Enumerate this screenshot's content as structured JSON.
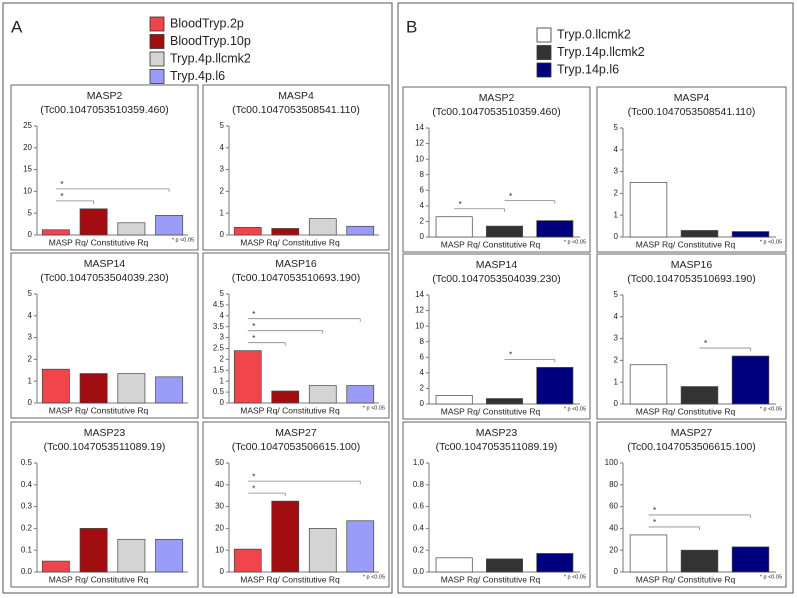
{
  "chart_data": [
    {
      "type": "bar",
      "label": "A",
      "series": [
        {
          "name": "BloodTryp.2p",
          "color": "#f2444b"
        },
        {
          "name": "BloodTryp.10p",
          "color": "#a20d12"
        },
        {
          "name": "Tryp.4p.llcmk2",
          "color": "#d4d4d4"
        },
        {
          "name": "Tryp.4p.l6",
          "color": "#9a9cf8"
        }
      ],
      "charts": [
        {
          "title": "MASP2",
          "subtitle": "(Tc00.1047053510359.460)",
          "xlabel": "MASP Rq/ Constitutive Rq",
          "note": "* p <0.05",
          "values": [
            1.2,
            6,
            2.8,
            4.5
          ],
          "ylim": [
            0,
            25
          ],
          "yticks": [
            0,
            5,
            10,
            15,
            20,
            25
          ],
          "brackets": [
            {
              "from": 0,
              "to": 1,
              "label": "*"
            },
            {
              "from": 0,
              "to": 3,
              "label": "*"
            }
          ]
        },
        {
          "title": "MASP4",
          "subtitle": "(Tc00.1047053508541.110)",
          "xlabel": "MASP Rq/ Constitutive Rq",
          "values": [
            0.35,
            0.3,
            0.75,
            0.4
          ],
          "ylim": [
            0,
            5
          ],
          "yticks": [
            0,
            1,
            2,
            3,
            4,
            5
          ]
        },
        {
          "title": "MASP14",
          "subtitle": "(Tc00.1047053504039.230)",
          "xlabel": "MASP Rq/ Constitutive Rq",
          "values": [
            1.55,
            1.35,
            1.35,
            1.2
          ],
          "ylim": [
            0,
            5
          ],
          "yticks": [
            0,
            1,
            2,
            3,
            4,
            5
          ]
        },
        {
          "title": "MASP16",
          "subtitle": "(Tc00.1047053510693.190)",
          "xlabel": "MASP Rq/ Constitutive Rq",
          "note": "* p <0.05",
          "values": [
            2.4,
            0.55,
            0.8,
            0.8
          ],
          "ylim": [
            0,
            5
          ],
          "yticks": [
            0,
            0.5,
            1,
            1.5,
            2,
            2.5,
            3,
            3.5,
            4,
            4.5,
            5
          ],
          "brackets": [
            {
              "from": 0,
              "to": 1,
              "label": "*"
            },
            {
              "from": 0,
              "to": 2,
              "label": "*"
            },
            {
              "from": 0,
              "to": 3,
              "label": "*"
            }
          ]
        },
        {
          "title": "MASP23",
          "subtitle": "(Tc00.1047053511089.19)",
          "xlabel": "MASP Rq/ Constitutive Rq",
          "values": [
            0.05,
            0.2,
            0.15,
            0.15
          ],
          "ylim": [
            0,
            0.5
          ],
          "yticks": [
            {
              "value": 0,
              "label": "0.0"
            },
            0.1,
            0.2,
            0.3,
            0.4,
            0.5
          ]
        },
        {
          "title": "MASP27",
          "subtitle": "(Tc00.1047053506615.100)",
          "xlabel": "MASP Rq/ Constitutive Rq",
          "note": "* p <0.05",
          "values": [
            10.5,
            32.5,
            20,
            23.5
          ],
          "ylim": [
            0,
            50
          ],
          "yticks": [
            0,
            10,
            20,
            30,
            40,
            50
          ],
          "brackets": [
            {
              "from": 0,
              "to": 1,
              "label": "*"
            },
            {
              "from": 0,
              "to": 3,
              "label": "*"
            }
          ]
        }
      ]
    },
    {
      "type": "bar",
      "label": "B",
      "series": [
        {
          "name": "Tryp.0.llcmk2",
          "color": "#ffffff"
        },
        {
          "name": "Tryp.14p.llcmk2",
          "color": "#333333"
        },
        {
          "name": "Tryp.14p.l6",
          "color": "#00007f"
        }
      ],
      "charts": [
        {
          "title": "MASP2",
          "subtitle": "(Tc00.1047053510359.460)",
          "xlabel": "MASP Rq/ Constitutive Rq",
          "note": "* p <0.05",
          "values": [
            2.6,
            1.4,
            2.1
          ],
          "ylim": [
            0,
            14
          ],
          "yticks": [
            0,
            2,
            4,
            6,
            8,
            10,
            12,
            14
          ],
          "brackets": [
            {
              "from": 0,
              "to": 1,
              "label": "*"
            },
            {
              "from": 1,
              "to": 2,
              "label": "*"
            }
          ]
        },
        {
          "title": "MASP4",
          "subtitle": "(Tc00.1047053508541.110)",
          "xlabel": "MASP Rq/ Constitutive Rq",
          "note": "* p <0.05",
          "values": [
            2.5,
            0.3,
            0.25
          ],
          "ylim": [
            0,
            5
          ],
          "yticks": [
            0,
            1,
            2,
            3,
            4,
            5
          ]
        },
        {
          "title": "MASP14",
          "subtitle": "(Tc00.1047053504039.230)",
          "xlabel": "MASP Rq/ Constitutive Rq",
          "note": "* p <0.05",
          "values": [
            1.1,
            0.7,
            4.7
          ],
          "ylim": [
            0,
            14
          ],
          "yticks": [
            0,
            2,
            4,
            6,
            8,
            10,
            12,
            14
          ],
          "brackets": [
            {
              "from": 1,
              "to": 2,
              "label": "*"
            }
          ]
        },
        {
          "title": "MASP16",
          "subtitle": "(Tc00.1047053510693.190)",
          "xlabel": "MASP Rq/ Constitutive Rq",
          "note": "* p <0.05",
          "values": [
            1.8,
            0.8,
            2.2
          ],
          "ylim": [
            0,
            5
          ],
          "yticks": [
            0,
            1,
            2,
            3,
            4,
            5
          ],
          "brackets": [
            {
              "from": 1,
              "to": 2,
              "label": "*"
            }
          ]
        },
        {
          "title": "MASP23",
          "subtitle": "(Tc00.1047053511089.19)",
          "xlabel": "MASP Rq/ Constitutive Rq",
          "note": "* p <0.05",
          "values": [
            0.13,
            0.12,
            0.17
          ],
          "ylim": [
            0,
            1
          ],
          "yticks": [
            {
              "value": 0,
              "label": "0.0"
            },
            0.2,
            0.4,
            0.6,
            0.8,
            {
              "value": 1,
              "label": "1.0"
            }
          ]
        },
        {
          "title": "MASP27",
          "subtitle": "(Tc00.1047053506615.100)",
          "xlabel": "MASP Rq/ Constitutive Rq",
          "note": "* p <0.05",
          "values": [
            34,
            20,
            23
          ],
          "ylim": [
            0,
            100
          ],
          "yticks": [
            0,
            20,
            40,
            60,
            80,
            100
          ],
          "brackets": [
            {
              "from": 0,
              "to": 1,
              "label": "*"
            },
            {
              "from": 0,
              "to": 2,
              "label": "*"
            }
          ]
        }
      ]
    }
  ]
}
